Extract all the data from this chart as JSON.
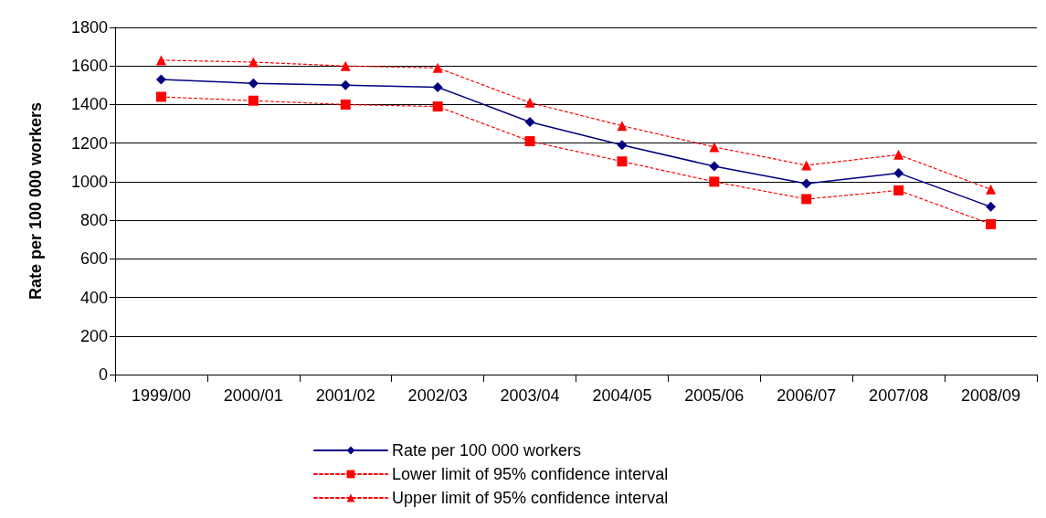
{
  "chart_data": {
    "type": "line",
    "ylabel": "Rate per 100 000 workers",
    "categories": [
      "1999/00",
      "2000/01",
      "2001/02",
      "2002/03",
      "2003/04",
      "2004/05",
      "2005/06",
      "2006/07",
      "2007/08",
      "2008/09"
    ],
    "series": [
      {
        "name": "Rate per 100 000 workers",
        "color": "#000080",
        "marker": "diamond",
        "line_style": "solid",
        "values": [
          1530,
          1510,
          1500,
          1490,
          1310,
          1190,
          1080,
          990,
          1045,
          870
        ]
      },
      {
        "name": "Lower limit of 95% confidence interval",
        "color": "#ff0000",
        "marker": "square",
        "line_style": "dotted",
        "values": [
          1440,
          1420,
          1400,
          1390,
          1210,
          1105,
          1000,
          910,
          955,
          780
        ]
      },
      {
        "name": "Upper limit of 95% confidence interval",
        "color": "#ff0000",
        "marker": "triangle",
        "line_style": "dotted",
        "values": [
          1630,
          1620,
          1600,
          1590,
          1410,
          1290,
          1180,
          1085,
          1140,
          960
        ]
      }
    ],
    "ylim": [
      0,
      1800
    ],
    "yticks": [
      0,
      200,
      400,
      600,
      800,
      1000,
      1200,
      1400,
      1600,
      1800
    ],
    "grid": "y",
    "legend": "bottom"
  }
}
